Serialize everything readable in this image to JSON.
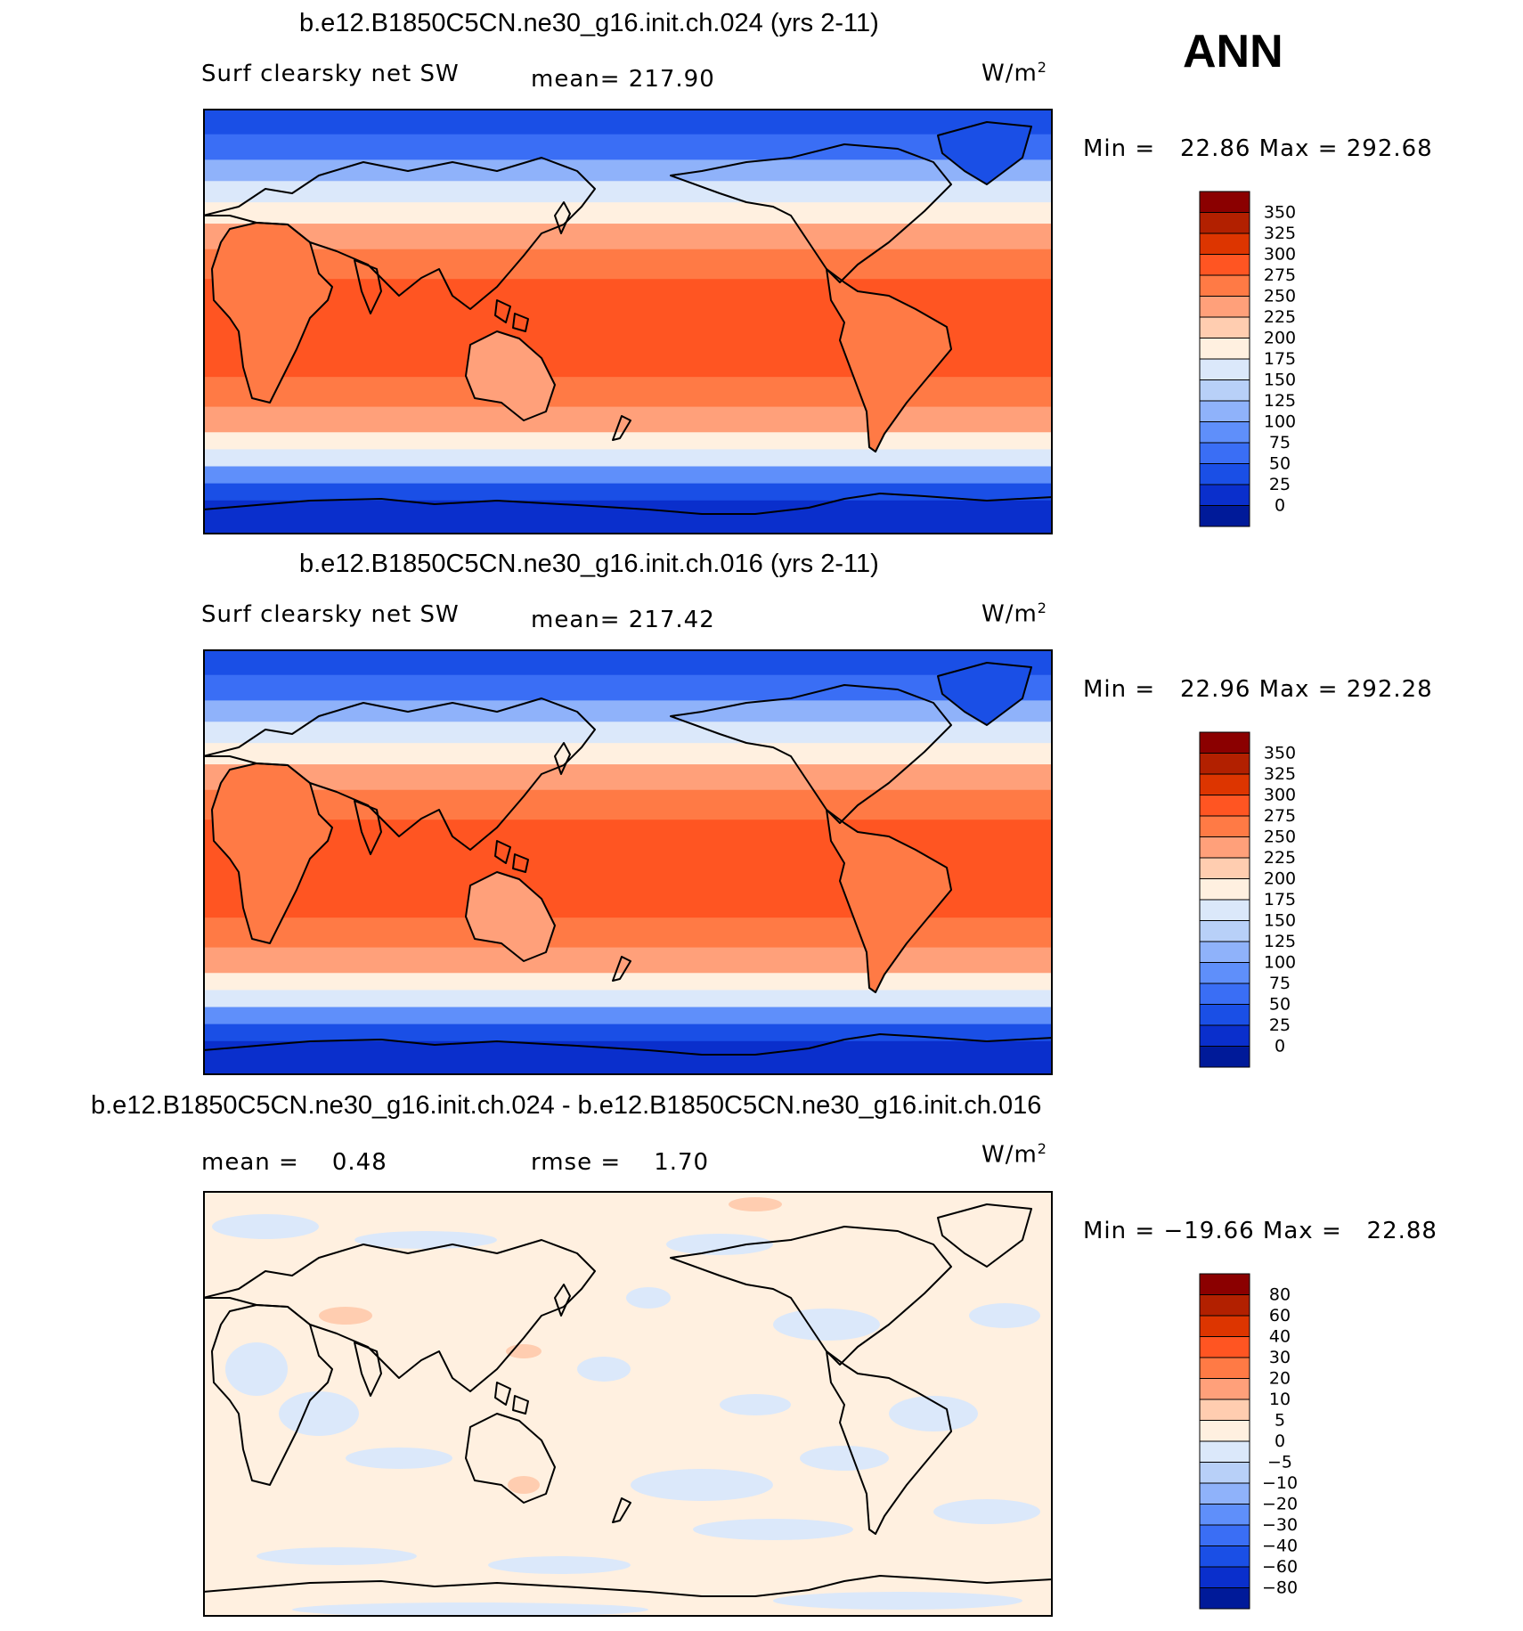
{
  "season": "ANN",
  "panels": [
    {
      "title": "b.e12.B1850C5CN.ne30_g16.init.ch.024 (yrs 2-11)",
      "left_text": "Surf clearsky net SW",
      "mid_text": "mean= 217.90",
      "units": "W/m",
      "units_sup": "2",
      "stats": "Min =   22.86 Max = 292.68",
      "legend_labels": [
        "350",
        "325",
        "300",
        "275",
        "250",
        "225",
        "200",
        "175",
        "150",
        "125",
        "100",
        "75",
        "50",
        "25",
        "0"
      ],
      "legend_colors": [
        "#8b0000",
        "#b22000",
        "#dd3500",
        "#ff5522",
        "#ff7a45",
        "#ffa07a",
        "#ffcdb0",
        "#fff0e0",
        "#dbe8fa",
        "#b8d0f8",
        "#8fb2fa",
        "#5f8ffa",
        "#3a6ef5",
        "#1a4fe6",
        "#0a2fcc",
        "#001a99"
      ],
      "map_type": "absolute"
    },
    {
      "title": "b.e12.B1850C5CN.ne30_g16.init.ch.016 (yrs 2-11)",
      "left_text": "Surf clearsky net SW",
      "mid_text": "mean= 217.42",
      "units": "W/m",
      "units_sup": "2",
      "stats": "Min =   22.96 Max = 292.28",
      "legend_labels": [
        "350",
        "325",
        "300",
        "275",
        "250",
        "225",
        "200",
        "175",
        "150",
        "125",
        "100",
        "75",
        "50",
        "25",
        "0"
      ],
      "legend_colors": [
        "#8b0000",
        "#b22000",
        "#dd3500",
        "#ff5522",
        "#ff7a45",
        "#ffa07a",
        "#ffcdb0",
        "#fff0e0",
        "#dbe8fa",
        "#b8d0f8",
        "#8fb2fa",
        "#5f8ffa",
        "#3a6ef5",
        "#1a4fe6",
        "#0a2fcc",
        "#001a99"
      ],
      "map_type": "absolute"
    },
    {
      "title": "b.e12.B1850C5CN.ne30_g16.init.ch.024 - b.e12.B1850C5CN.ne30_g16.init.ch.016",
      "left_text": "mean =    0.48",
      "mid_text": "rmse =    1.70",
      "units": "W/m",
      "units_sup": "2",
      "stats": "Min = −19.66 Max =   22.88",
      "legend_labels": [
        "80",
        "60",
        "40",
        "30",
        "20",
        "10",
        "5",
        "0",
        "−5",
        "−10",
        "−20",
        "−30",
        "−40",
        "−60",
        "−80"
      ],
      "legend_colors": [
        "#8b0000",
        "#b22000",
        "#dd3500",
        "#ff5522",
        "#ff7a45",
        "#ffa07a",
        "#ffcdb0",
        "#fff0e0",
        "#dbe8fa",
        "#b8d0f8",
        "#8fb2fa",
        "#5f8ffa",
        "#3a6ef5",
        "#1a4fe6",
        "#0a2fcc",
        "#001a99"
      ],
      "map_type": "difference"
    }
  ]
}
